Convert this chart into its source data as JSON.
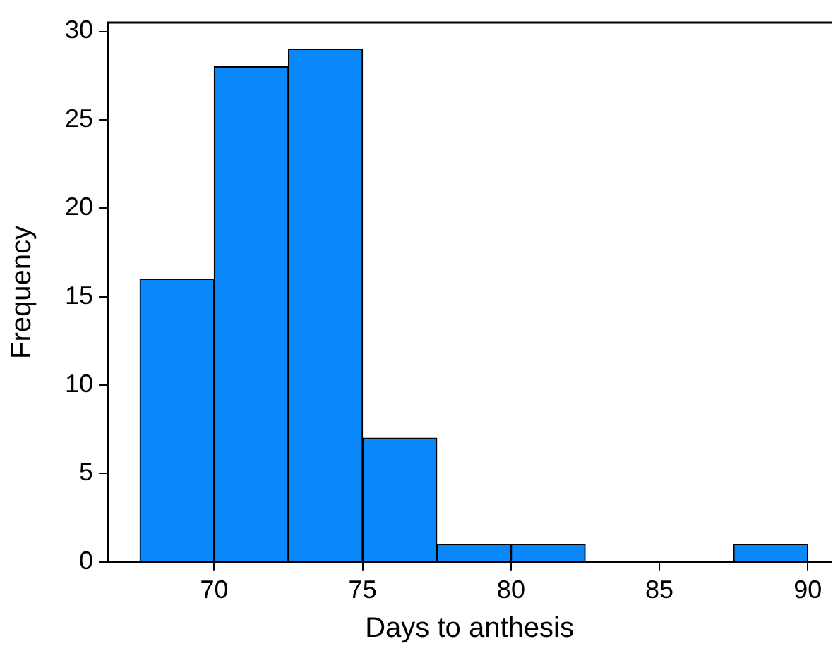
{
  "chart_data": {
    "type": "histogram",
    "xlabel": "Days to anthesis",
    "ylabel": "Frequency",
    "bins": [
      67.5,
      70,
      72.5,
      75,
      77.5,
      80,
      82.5,
      85,
      87.5,
      90
    ],
    "values": [
      16,
      28,
      29,
      7,
      1,
      1,
      0,
      0,
      1
    ],
    "color": "#0a88fa",
    "xlim": [
      66.4,
      90.8
    ],
    "xticks": [
      70,
      75,
      80,
      85,
      90
    ],
    "ylim": [
      0,
      30.5
    ],
    "yticks": [
      0,
      5,
      10,
      15,
      20,
      25,
      30
    ],
    "grid": false,
    "legend": false
  }
}
